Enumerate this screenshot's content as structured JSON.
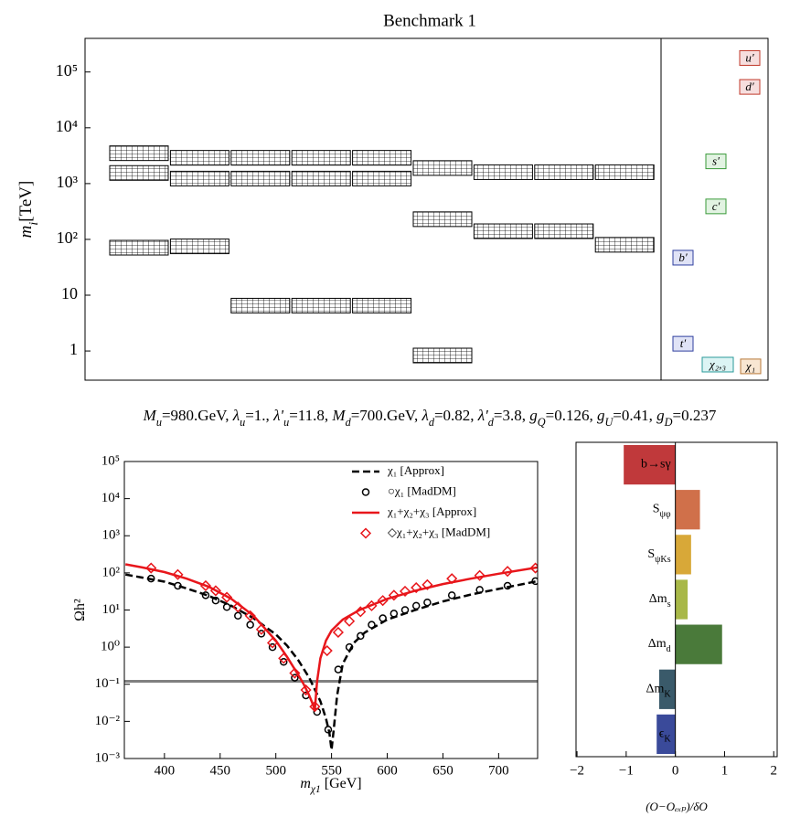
{
  "chart_data": [
    {
      "type": "spectrum",
      "title": "Benchmark 1",
      "ylabel": {
        "main": "m",
        "sub": "i",
        "rest": "[TeV]"
      },
      "ylog": true,
      "ylim": [
        0.3,
        400000
      ],
      "yticks": [
        1,
        10,
        {
          "value": 100,
          "label": "10²"
        },
        {
          "value": 1000,
          "label": "10³"
        },
        {
          "value": 10000,
          "label": "10⁴"
        },
        {
          "value": 100000,
          "label": "10⁵"
        }
      ],
      "columns": [
        [
          3500,
          1550,
          71
        ],
        [
          2900,
          1230,
          75
        ],
        [
          2900,
          1230,
          6.5
        ],
        [
          2900,
          1230,
          6.5
        ],
        [
          2900,
          1230,
          6.5
        ],
        [
          1900,
          230,
          0.83
        ],
        [
          1600,
          140
        ],
        [
          1600,
          140
        ],
        [
          1600,
          80
        ]
      ],
      "states": [
        {
          "label": "u′",
          "value": 178000,
          "color": "#c0392b",
          "fill": "#f6dede"
        },
        {
          "label": "d′",
          "value": 54000,
          "color": "#c0392b",
          "fill": "#f6dede"
        },
        {
          "label": "s′",
          "value": 2500,
          "color": "#3a9a3a",
          "fill": "#e2f3e2"
        },
        {
          "label": "c′",
          "value": 390,
          "color": "#3a9a3a",
          "fill": "#e2f3e2"
        },
        {
          "label": "b′",
          "value": 47,
          "color": "#2f3f9f",
          "fill": "#e0e3f6"
        },
        {
          "label": "t′",
          "value": 1.35,
          "color": "#2f3f9f",
          "fill": "#e0e3f6"
        },
        {
          "label": "χ₂,₃",
          "value": 0.57,
          "color": "#2a9a9a",
          "fill": "#dcf4f4"
        },
        {
          "label": "χ₁",
          "value": 0.53,
          "color": "#b87a3a",
          "fill": "#f8e6d2"
        }
      ],
      "parameters": [
        {
          "main": "M",
          "sub": "u",
          "rest": "=980.GeV, "
        },
        {
          "main": "λ",
          "sub": "u",
          "rest": "=1., "
        },
        {
          "main": "λ'",
          "sub": "u",
          "rest": "=11.8, "
        },
        {
          "main": "M",
          "sub": "d",
          "rest": "=700.GeV, "
        },
        {
          "main": "λ",
          "sub": "d",
          "rest": "=0.82, "
        },
        {
          "main": "λ'",
          "sub": "d",
          "rest": "=3.8, "
        },
        {
          "main": "g",
          "sub": "Q",
          "rest": "=0.126, "
        },
        {
          "main": "g",
          "sub": "U",
          "rest": "=0.41, "
        },
        {
          "main": "g",
          "sub": "D",
          "rest": "=0.237"
        }
      ]
    },
    {
      "type": "line",
      "xlabel": {
        "main": "m",
        "sub": "χ1",
        "rest": " [GeV]"
      },
      "ylabel": {
        "main": "Ωh²"
      },
      "ylog": true,
      "xlim": [
        364,
        735
      ],
      "ylim": [
        0.001,
        100000
      ],
      "xticks": [
        400,
        450,
        500,
        550,
        600,
        650,
        700
      ],
      "yticks": [
        {
          "value": 0.001,
          "label": "10⁻³"
        },
        {
          "value": 0.01,
          "label": "10⁻²"
        },
        {
          "value": 0.1,
          "label": "10⁻¹"
        },
        {
          "value": 1,
          "label": "10⁰"
        },
        {
          "value": 10,
          "label": "10¹"
        },
        {
          "value": 100,
          "label": "10²"
        },
        {
          "value": 1000,
          "label": "10³"
        },
        {
          "value": 10000,
          "label": "10⁴"
        },
        {
          "value": 100000,
          "label": "10⁵"
        }
      ],
      "hline": 0.12,
      "hline_color": "#808080",
      "series": [
        {
          "name": "χ₁ [Approx]",
          "color": "#000000",
          "style": "dashed",
          "x": [
            365,
            380,
            400,
            420,
            440,
            460,
            480,
            500,
            510,
            520,
            530,
            540,
            545,
            548,
            550,
            552,
            555,
            560,
            570,
            580,
            600,
            625,
            650,
            675,
            700,
            735
          ],
          "values": [
            90,
            75,
            58,
            38,
            24,
            13,
            6,
            2.2,
            1.1,
            0.45,
            0.15,
            0.035,
            0.012,
            0.005,
            0.0017,
            0.006,
            0.05,
            0.35,
            1.3,
            2.5,
            5.5,
            10,
            17,
            26,
            37,
            60
          ]
        },
        {
          "name": "○χ₁ [MadDM]",
          "color": "#000000",
          "style": "circle",
          "x": [
            388,
            412,
            437,
            446,
            456,
            466,
            477,
            487,
            497,
            507,
            517,
            527,
            537,
            547,
            556,
            566,
            576,
            586,
            596,
            606,
            616,
            626,
            636,
            658,
            683,
            708,
            733
          ],
          "values": [
            70,
            45,
            25,
            18,
            12,
            7,
            4,
            2.3,
            1,
            0.4,
            0.15,
            0.05,
            0.018,
            0.006,
            0.25,
            1,
            2,
            4,
            6,
            8,
            10,
            13,
            16,
            25,
            35,
            45,
            60
          ]
        },
        {
          "name": "χ₁+χ₂+χ₃ [Approx]",
          "color": "#e8161b",
          "style": "solid",
          "x": [
            365,
            380,
            400,
            420,
            440,
            460,
            480,
            500,
            510,
            520,
            525,
            530,
            533,
            535,
            537,
            540,
            545,
            550,
            560,
            575,
            600,
            625,
            650,
            675,
            700,
            735
          ],
          "values": [
            170,
            140,
            105,
            70,
            42,
            20,
            7,
            1.5,
            0.55,
            0.18,
            0.1,
            0.05,
            0.03,
            0.02,
            0.12,
            0.5,
            1.5,
            2.8,
            5.5,
            10,
            20,
            33,
            50,
            70,
            95,
            140
          ]
        },
        {
          "name": "◇χ₁+χ₂+χ₃ [MadDM]",
          "color": "#e8161b",
          "style": "diamond",
          "x": [
            388,
            412,
            437,
            446,
            456,
            466,
            477,
            487,
            497,
            507,
            517,
            527,
            535,
            546,
            556,
            566,
            576,
            586,
            596,
            606,
            616,
            626,
            636,
            658,
            683,
            708,
            733
          ],
          "values": [
            135,
            90,
            45,
            33,
            22,
            12,
            7,
            3,
            1.3,
            0.5,
            0.2,
            0.07,
            0.025,
            0.8,
            2.5,
            5,
            9,
            13,
            18,
            25,
            32,
            40,
            48,
            70,
            85,
            110,
            135
          ]
        }
      ]
    },
    {
      "type": "hbar",
      "xlabel": "(O−Oₑₓₚ)/δO",
      "xlim": [
        -2.02,
        2.07
      ],
      "xticks": [
        {
          "value": -2,
          "label": "−2"
        },
        {
          "value": -1,
          "label": "−1"
        },
        0,
        1,
        2
      ],
      "categories": [
        {
          "main": "b→sγ"
        },
        {
          "main": "S",
          "sub": "ψφ"
        },
        {
          "main": "S",
          "sub": "ψKs"
        },
        {
          "main": "Δm",
          "sub": "s"
        },
        {
          "main": "Δm",
          "sub": "d"
        },
        {
          "main": "Δm",
          "sub": "K"
        },
        {
          "main": "ϵ",
          "sub": "K"
        }
      ],
      "values": [
        -1.05,
        0.5,
        0.32,
        0.25,
        0.95,
        -0.33,
        -0.38
      ],
      "colors": [
        "#c0393b",
        "#d0704a",
        "#d8a838",
        "#a8b848",
        "#4a7a3a",
        "#3a5a6a",
        "#3a4a9a"
      ]
    }
  ]
}
